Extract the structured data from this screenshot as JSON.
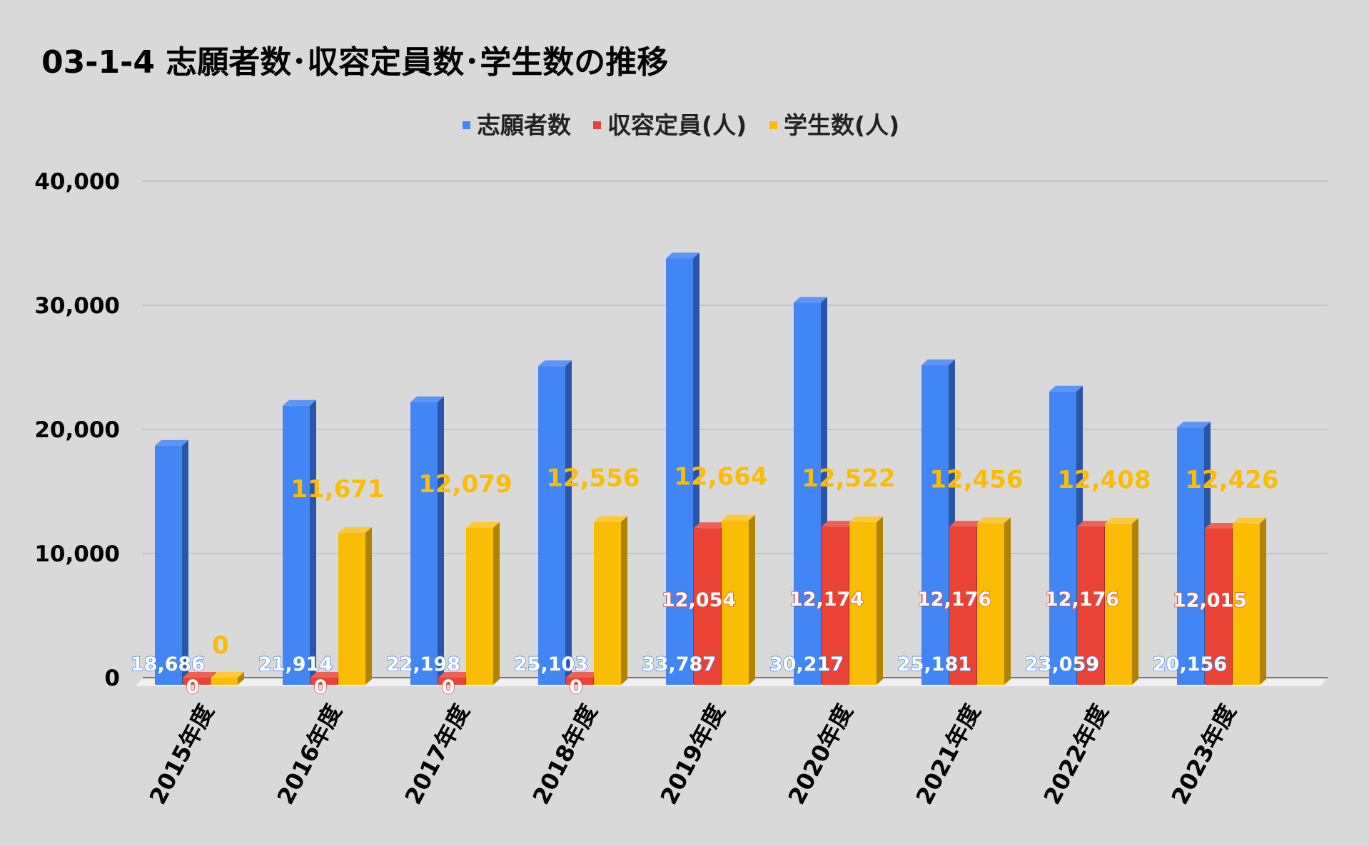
{
  "chart_data": {
    "type": "bar",
    "title": "03-1-4 志願者数･収容定員数･学生数の推移",
    "categories": [
      "2015年度",
      "2016年度",
      "2017年度",
      "2018年度",
      "2019年度",
      "2020年度",
      "2021年度",
      "2022年度",
      "2023年度"
    ],
    "series": [
      {
        "name": "志願者数",
        "color": "#4285f4",
        "side_color": "#2a56a8",
        "top_color": "#5b95f6",
        "values": [
          18686,
          21914,
          22198,
          25103,
          33787,
          30217,
          25181,
          23059,
          20156
        ],
        "labels": [
          "18,686",
          "21,914",
          "22,198",
          "25,103",
          "33,787",
          "30,217",
          "25,181",
          "23,059",
          "20,156"
        ]
      },
      {
        "name": "収容定員(人)",
        "color": "#ea4335",
        "side_color": "#a22c22",
        "top_color": "#ee6255",
        "values": [
          0,
          0,
          0,
          0,
          12054,
          12174,
          12176,
          12176,
          12015
        ],
        "labels": [
          "0",
          "0",
          "0",
          "0",
          "12,054",
          "12,174",
          "12,176",
          "12,176",
          "12,015"
        ]
      },
      {
        "name": "学生数(人)",
        "color": "#fbbc04",
        "side_color": "#b08300",
        "top_color": "#fcc93a",
        "values": [
          0,
          11671,
          12079,
          12556,
          12664,
          12522,
          12456,
          12408,
          12426
        ],
        "labels": [
          "0",
          "11,671",
          "12,079",
          "12,556",
          "12,664",
          "12,522",
          "12,456",
          "12,408",
          "12,426"
        ]
      }
    ],
    "yticks": [
      "0",
      "10,000",
      "20,000",
      "30,000",
      "40,000"
    ],
    "ylim": [
      0,
      40000
    ],
    "grid": true,
    "legend_position": "top-center",
    "style": "3d-columns"
  }
}
